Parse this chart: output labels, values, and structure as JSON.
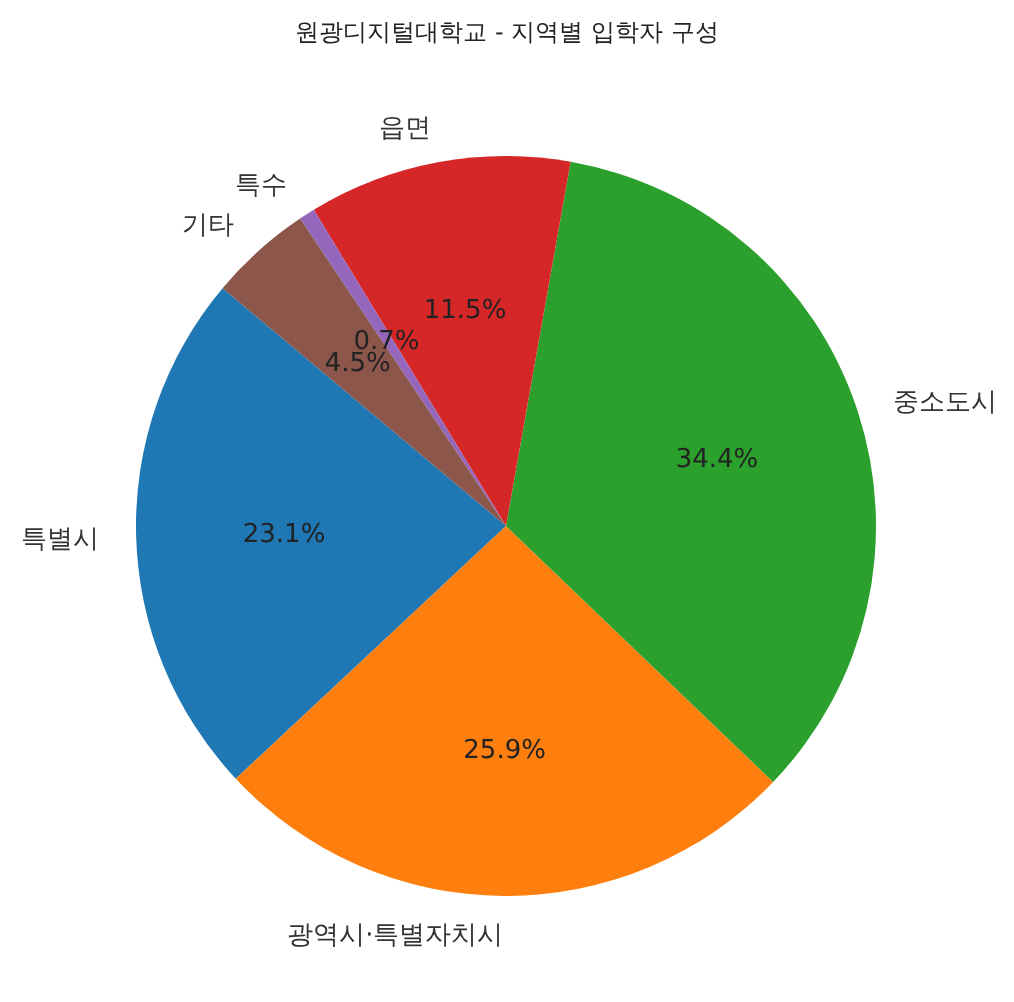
{
  "chart_data": {
    "type": "pie",
    "title": "원광디지털대학교 - 지역별 입학자 구성",
    "categories": [
      "특별시",
      "광역시·특별자치시",
      "중소도시",
      "읍면",
      "특수",
      "기타"
    ],
    "values": [
      23.1,
      25.9,
      34.4,
      11.5,
      0.7,
      4.5
    ],
    "colors": [
      "#1f77b4",
      "#ff7f0e",
      "#2ca02c",
      "#d62728",
      "#9467bd",
      "#8c564b"
    ],
    "value_labels": [
      "23.1%",
      "25.9%",
      "34.4%",
      "11.5%",
      "0.7%",
      "4.5%"
    ]
  }
}
